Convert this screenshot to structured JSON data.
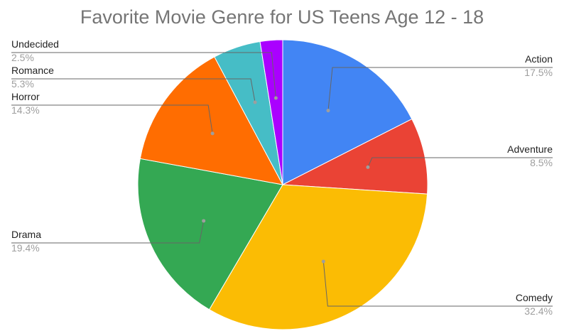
{
  "chart_data": {
    "type": "pie",
    "title": "Favorite Movie Genre for US Teens Age 12 - 18",
    "legend": "none",
    "slices": [
      {
        "label": "Action",
        "value": 17.5,
        "display": "17.5%",
        "color": "#4285F4"
      },
      {
        "label": "Adventure",
        "value": 8.5,
        "display": "8.5%",
        "color": "#EA4335"
      },
      {
        "label": "Comedy",
        "value": 32.4,
        "display": "32.4%",
        "color": "#FBBC04"
      },
      {
        "label": "Drama",
        "value": 19.4,
        "display": "19.4%",
        "color": "#34A853"
      },
      {
        "label": "Horror",
        "value": 14.3,
        "display": "14.3%",
        "color": "#FF6D01"
      },
      {
        "label": "Romance",
        "value": 5.3,
        "display": "5.3%",
        "color": "#46BDC6"
      },
      {
        "label": "Undecided",
        "value": 2.5,
        "display": "2.5%",
        "color": "#AA00FF"
      }
    ]
  }
}
